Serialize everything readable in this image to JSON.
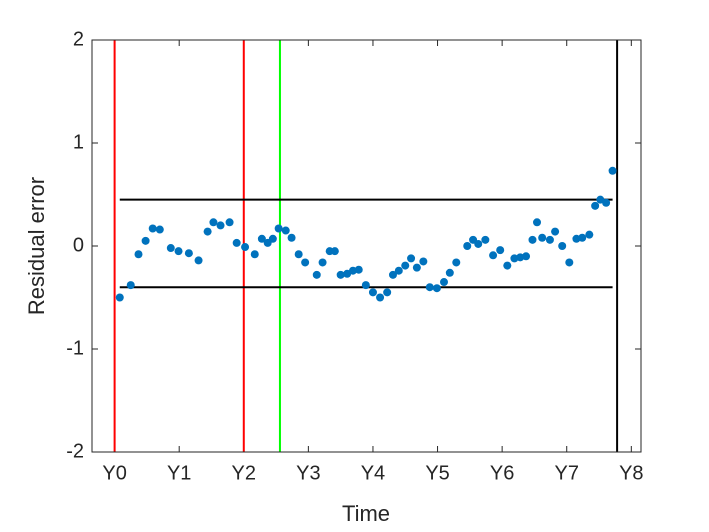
{
  "chart_data": {
    "type": "scatter",
    "xlabel": "Time",
    "ylabel": "Residual error",
    "xlim": [
      -0.35,
      8.15
    ],
    "ylim": [
      -2,
      2
    ],
    "xticks": [
      {
        "value": 0,
        "label": "Y0"
      },
      {
        "value": 1,
        "label": "Y1"
      },
      {
        "value": 2,
        "label": "Y2"
      },
      {
        "value": 3,
        "label": "Y3"
      },
      {
        "value": 4,
        "label": "Y4"
      },
      {
        "value": 5,
        "label": "Y5"
      },
      {
        "value": 6,
        "label": "Y6"
      },
      {
        "value": 7,
        "label": "Y7"
      },
      {
        "value": 8,
        "label": "Y8"
      }
    ],
    "yticks": [
      -2,
      -1,
      0,
      1,
      2
    ],
    "color": "#0072bd",
    "x": [
      0.08,
      0.25,
      0.37,
      0.48,
      0.59,
      0.7,
      0.87,
      0.99,
      1.15,
      1.3,
      1.44,
      1.53,
      1.64,
      1.78,
      1.89,
      2.02,
      2.17,
      2.28,
      2.37,
      2.45,
      2.54,
      2.65,
      2.74,
      2.85,
      2.95,
      3.13,
      3.22,
      3.33,
      3.41,
      3.5,
      3.6,
      3.69,
      3.78,
      3.89,
      4.0,
      4.11,
      4.22,
      4.31,
      4.4,
      4.5,
      4.59,
      4.68,
      4.78,
      4.88,
      4.99,
      5.1,
      5.19,
      5.29,
      5.46,
      5.55,
      5.63,
      5.74,
      5.86,
      5.97,
      6.08,
      6.19,
      6.28,
      6.37,
      6.47,
      6.54,
      6.62,
      6.74,
      6.82,
      6.93,
      7.04,
      7.15,
      7.24,
      7.35,
      7.44,
      7.52,
      7.61,
      7.71
    ],
    "y": [
      -0.5,
      -0.38,
      -0.08,
      0.05,
      0.17,
      0.16,
      -0.02,
      -0.05,
      -0.07,
      -0.14,
      0.14,
      0.23,
      0.2,
      0.23,
      0.03,
      -0.01,
      -0.08,
      0.07,
      0.03,
      0.07,
      0.17,
      0.15,
      0.08,
      -0.08,
      -0.16,
      -0.28,
      -0.16,
      -0.05,
      -0.05,
      -0.28,
      -0.27,
      -0.24,
      -0.23,
      -0.38,
      -0.45,
      -0.5,
      -0.45,
      -0.28,
      -0.24,
      -0.19,
      -0.12,
      -0.21,
      -0.15,
      -0.4,
      -0.41,
      -0.35,
      -0.26,
      -0.16,
      0.0,
      0.06,
      0.02,
      0.06,
      -0.09,
      -0.04,
      -0.19,
      -0.12,
      -0.11,
      -0.1,
      0.06,
      0.23,
      0.08,
      0.06,
      0.14,
      0.0,
      -0.16,
      0.07,
      0.08,
      0.11,
      0.39,
      0.45,
      0.42,
      0.73
    ],
    "vlines": [
      {
        "x": 0,
        "color": "#ff0000"
      },
      {
        "x": 2.0,
        "color": "#ff0000"
      },
      {
        "x": 2.56,
        "color": "#00ff00"
      },
      {
        "x": 7.78,
        "color": "#000000"
      }
    ],
    "hlines": [
      {
        "y": 0.45,
        "xmin": 0.08,
        "xmax": 7.71,
        "color": "#000000"
      },
      {
        "y": -0.4,
        "xmin": 0.08,
        "xmax": 7.71,
        "color": "#000000"
      }
    ]
  }
}
